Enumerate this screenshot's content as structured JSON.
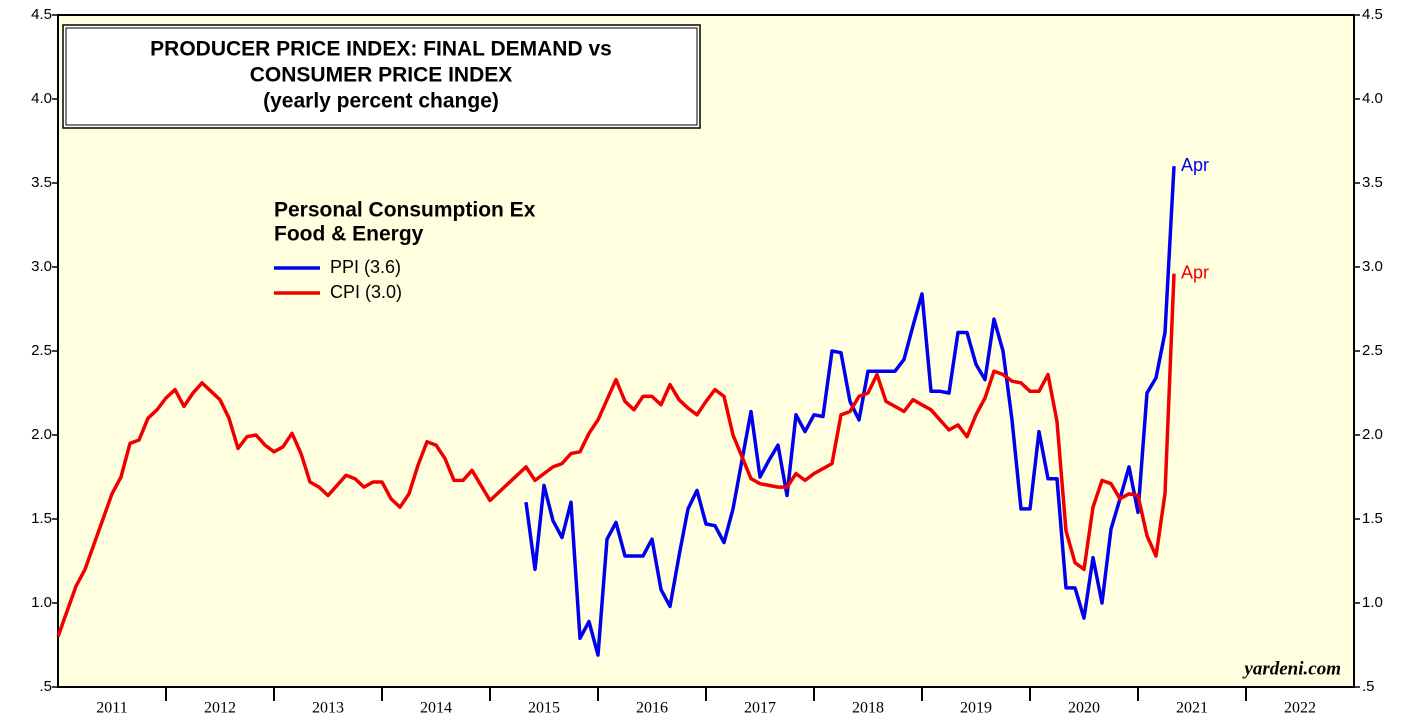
{
  "chart_data": {
    "type": "line",
    "title_lines": [
      "PRODUCER PRICE INDEX: FINAL DEMAND vs",
      "CONSUMER PRICE INDEX",
      "(yearly percent change)"
    ],
    "legend_title": [
      "Personal Consumption Ex",
      "Food & Energy"
    ],
    "source": "yardeni.com",
    "xlim": [
      2011,
      2023
    ],
    "xticks": [
      {
        "value": 2011.5,
        "label": "2011"
      },
      {
        "value": 2012.5,
        "label": "2012"
      },
      {
        "value": 2013.5,
        "label": "2013"
      },
      {
        "value": 2014.5,
        "label": "2014"
      },
      {
        "value": 2015.5,
        "label": "2015"
      },
      {
        "value": 2016.5,
        "label": "2016"
      },
      {
        "value": 2017.5,
        "label": "2017"
      },
      {
        "value": 2018.5,
        "label": "2018"
      },
      {
        "value": 2019.5,
        "label": "2019"
      },
      {
        "value": 2020.5,
        "label": "2020"
      },
      {
        "value": 2021.5,
        "label": "2021"
      },
      {
        "value": 2022.5,
        "label": "2022"
      }
    ],
    "ylim": [
      0.5,
      4.5
    ],
    "yticks": [
      {
        "value": 0.5,
        "label": ".5"
      },
      {
        "value": 1,
        "label": "1.0"
      },
      1.5,
      {
        "value": 2,
        "label": "2.0"
      },
      2.5,
      {
        "value": 3,
        "label": "3.0"
      },
      3.5,
      {
        "value": 4,
        "label": "4.0"
      },
      4.5
    ],
    "x": [
      2011,
      2011.083,
      2011.167,
      2011.25,
      2011.333,
      2011.417,
      2011.5,
      2011.583,
      2011.667,
      2011.75,
      2011.833,
      2011.917,
      2012,
      2012.083,
      2012.167,
      2012.25,
      2012.333,
      2012.417,
      2012.5,
      2012.583,
      2012.667,
      2012.75,
      2012.833,
      2012.917,
      2013,
      2013.083,
      2013.167,
      2013.25,
      2013.333,
      2013.417,
      2013.5,
      2013.583,
      2013.667,
      2013.75,
      2013.833,
      2013.917,
      2014,
      2014.083,
      2014.167,
      2014.25,
      2014.333,
      2014.417,
      2014.5,
      2014.583,
      2014.667,
      2014.75,
      2014.833,
      2014.917,
      2015,
      2015.083,
      2015.167,
      2015.25,
      2015.333,
      2015.417,
      2015.5,
      2015.583,
      2015.667,
      2015.75,
      2015.833,
      2015.917,
      2016,
      2016.083,
      2016.167,
      2016.25,
      2016.333,
      2016.417,
      2016.5,
      2016.583,
      2016.667,
      2016.75,
      2016.833,
      2016.917,
      2017,
      2017.083,
      2017.167,
      2017.25,
      2017.333,
      2017.417,
      2017.5,
      2017.583,
      2017.667,
      2017.75,
      2017.833,
      2017.917,
      2018,
      2018.083,
      2018.167,
      2018.25,
      2018.333,
      2018.417,
      2018.5,
      2018.583,
      2018.667,
      2018.75,
      2018.833,
      2018.917,
      2019,
      2019.083,
      2019.167,
      2019.25,
      2019.333,
      2019.417,
      2019.5,
      2019.583,
      2019.667,
      2019.75,
      2019.833,
      2019.917,
      2020,
      2020.083,
      2020.167,
      2020.25,
      2020.333,
      2020.417,
      2020.5,
      2020.583,
      2020.667,
      2020.75,
      2020.833,
      2020.917,
      2021,
      2021.083,
      2021.167,
      2021.25,
      2021.333
    ],
    "series": [
      {
        "name": "PPI (3.6)",
        "color": "#0000ee",
        "end_label": "Apr",
        "values": [
          null,
          null,
          null,
          null,
          null,
          null,
          null,
          null,
          null,
          null,
          null,
          null,
          null,
          null,
          null,
          null,
          null,
          null,
          null,
          null,
          null,
          null,
          null,
          null,
          null,
          null,
          null,
          null,
          null,
          null,
          null,
          null,
          null,
          null,
          null,
          null,
          null,
          null,
          null,
          null,
          null,
          null,
          null,
          null,
          null,
          null,
          null,
          null,
          null,
          null,
          null,
          null,
          1.6,
          1.2,
          1.7,
          1.49,
          1.39,
          1.6,
          0.79,
          0.89,
          0.69,
          1.38,
          1.48,
          1.28,
          1.28,
          1.28,
          1.38,
          1.08,
          0.98,
          1.28,
          1.56,
          1.67,
          1.47,
          1.46,
          1.36,
          1.56,
          1.85,
          2.14,
          1.75,
          1.85,
          1.94,
          1.64,
          2.12,
          2.02,
          2.12,
          2.11,
          2.5,
          2.49,
          2.2,
          2.09,
          2.38,
          2.38,
          2.38,
          2.38,
          2.45,
          2.65,
          2.84,
          2.26,
          2.26,
          2.25,
          2.61,
          2.61,
          2.42,
          2.33,
          2.69,
          2.5,
          2.09,
          1.56,
          1.56,
          2.02,
          1.74,
          1.74,
          1.09,
          1.09,
          0.91,
          1.27,
          1.0,
          1.44,
          1.62,
          1.81,
          1.54,
          2.25,
          2.34,
          2.61,
          3.6
        ]
      },
      {
        "name": "CPI (3.0)",
        "color": "#ee0000",
        "end_label": "Apr",
        "values": [
          0.8,
          0.95,
          1.1,
          1.2,
          1.35,
          1.5,
          1.65,
          1.75,
          1.95,
          1.97,
          2.1,
          2.15,
          2.22,
          2.27,
          2.17,
          2.25,
          2.31,
          2.26,
          2.21,
          2.1,
          1.92,
          1.99,
          2.0,
          1.94,
          1.9,
          1.93,
          2.01,
          1.89,
          1.72,
          1.69,
          1.64,
          1.7,
          1.76,
          1.74,
          1.69,
          1.72,
          1.72,
          1.62,
          1.57,
          1.65,
          1.82,
          1.96,
          1.94,
          1.86,
          1.73,
          1.73,
          1.79,
          1.7,
          1.61,
          1.66,
          1.71,
          1.76,
          1.81,
          1.73,
          1.77,
          1.81,
          1.83,
          1.89,
          1.9,
          2.01,
          2.09,
          2.21,
          2.33,
          2.2,
          2.15,
          2.23,
          2.23,
          2.18,
          2.3,
          2.21,
          2.16,
          2.12,
          2.2,
          2.27,
          2.23,
          2.0,
          1.87,
          1.74,
          1.71,
          1.7,
          1.69,
          1.69,
          1.77,
          1.73,
          1.77,
          1.8,
          1.83,
          2.12,
          2.14,
          2.23,
          2.25,
          2.36,
          2.2,
          2.17,
          2.14,
          2.21,
          2.18,
          2.15,
          2.09,
          2.03,
          2.06,
          1.99,
          2.12,
          2.22,
          2.38,
          2.36,
          2.32,
          2.31,
          2.26,
          2.26,
          2.36,
          2.08,
          1.43,
          1.24,
          1.2,
          1.57,
          1.73,
          1.71,
          1.62,
          1.65,
          1.64,
          1.4,
          1.28,
          1.65,
          2.96
        ]
      }
    ]
  }
}
